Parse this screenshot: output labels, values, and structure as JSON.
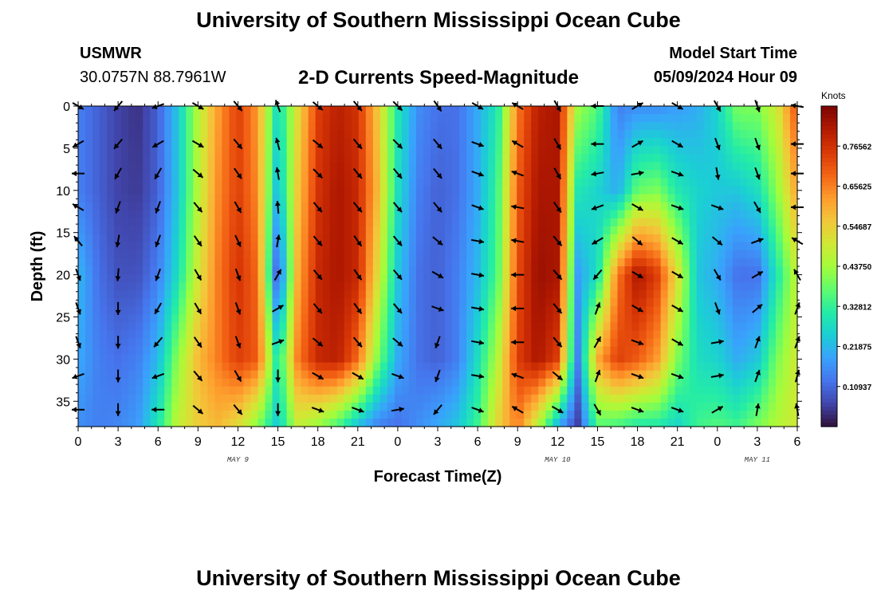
{
  "header": {
    "title": "University of Southern Mississippi Ocean Cube",
    "station": "USMWR",
    "coords": "30.0757N  88.7961W",
    "variable": "2-D Currents Speed-Magnitude",
    "model_start_label": "Model Start Time",
    "model_start_value": "05/09/2024 Hour 09"
  },
  "footer": {
    "title": "University of Southern Mississippi Ocean Cube"
  },
  "colors": {
    "arrow": "#000000",
    "axis": "#000000",
    "background": "#ffffff"
  },
  "chart_data": {
    "type": "heatmap",
    "title": "2-D Currents Speed-Magnitude",
    "xlabel": "Forecast Time(Z)",
    "ylabel": "Depth (ft)",
    "x_tick_labels": [
      "0",
      "3",
      "6",
      "9",
      "12",
      "15",
      "18",
      "21",
      "0",
      "3",
      "6",
      "9",
      "12",
      "15",
      "18",
      "21",
      "0",
      "3",
      "6"
    ],
    "x_range_hours": [
      0,
      54
    ],
    "y_ticks": [
      0,
      5,
      10,
      15,
      20,
      25,
      30,
      35
    ],
    "y_range_ft": [
      0,
      38
    ],
    "date_labels": [
      {
        "text": "MAY 9",
        "hour": 12
      },
      {
        "text": "MAY 10",
        "hour": 36
      },
      {
        "text": "MAY 11",
        "hour": 51
      }
    ],
    "colorbar": {
      "title": "Knots",
      "labels": [
        "0.76562",
        "0.65625",
        "0.54687",
        "0.43750",
        "0.32812",
        "0.21875",
        "0.10937"
      ],
      "range": [
        0,
        0.875
      ],
      "colormap": [
        "#30123b",
        "#4145ab",
        "#4675ed",
        "#39a2fc",
        "#1bcfd4",
        "#24eca6",
        "#61fc6c",
        "#a4fc3b",
        "#d1e834",
        "#f3c63a",
        "#fe9b2d",
        "#f36315",
        "#d93806",
        "#b11901",
        "#7a0403"
      ]
    },
    "speed_profiles": {
      "hours": [
        0,
        1.5,
        3,
        4.5,
        6,
        7.5,
        9,
        10.5,
        12,
        13.5,
        15,
        16.5,
        18,
        19.5,
        21,
        22.5,
        24,
        25.5,
        27,
        28.5,
        30,
        31.5,
        33,
        34.5,
        36,
        37.5,
        39,
        40.5,
        42,
        43.5,
        45,
        46.5,
        48,
        49.5,
        51,
        52.5,
        54
      ],
      "depths_ft": [
        0,
        10,
        20,
        30,
        38
      ],
      "values_knots": [
        [
          0.14,
          0.14,
          0.22,
          0.2,
          0.16
        ],
        [
          0.1,
          0.1,
          0.12,
          0.14,
          0.14
        ],
        [
          0.06,
          0.06,
          0.08,
          0.12,
          0.15
        ],
        [
          0.04,
          0.05,
          0.08,
          0.14,
          0.18
        ],
        [
          0.1,
          0.1,
          0.14,
          0.22,
          0.3
        ],
        [
          0.24,
          0.24,
          0.28,
          0.42,
          0.48
        ],
        [
          0.46,
          0.46,
          0.5,
          0.58,
          0.55
        ],
        [
          0.62,
          0.64,
          0.66,
          0.66,
          0.58
        ],
        [
          0.74,
          0.74,
          0.76,
          0.74,
          0.52
        ],
        [
          0.62,
          0.64,
          0.68,
          0.7,
          0.4
        ],
        [
          0.26,
          0.2,
          0.06,
          0.28,
          0.24
        ],
        [
          0.52,
          0.56,
          0.6,
          0.66,
          0.48
        ],
        [
          0.74,
          0.76,
          0.78,
          0.78,
          0.42
        ],
        [
          0.8,
          0.82,
          0.82,
          0.8,
          0.34
        ],
        [
          0.76,
          0.78,
          0.78,
          0.68,
          0.22
        ],
        [
          0.56,
          0.58,
          0.52,
          0.4,
          0.14
        ],
        [
          0.3,
          0.28,
          0.24,
          0.2,
          0.12
        ],
        [
          0.16,
          0.14,
          0.12,
          0.12,
          0.16
        ],
        [
          0.12,
          0.1,
          0.1,
          0.1,
          0.2
        ],
        [
          0.12,
          0.12,
          0.14,
          0.14,
          0.24
        ],
        [
          0.2,
          0.2,
          0.22,
          0.28,
          0.34
        ],
        [
          0.3,
          0.34,
          0.36,
          0.46,
          0.54
        ],
        [
          0.66,
          0.7,
          0.72,
          0.74,
          0.66
        ],
        [
          0.8,
          0.82,
          0.84,
          0.82,
          0.46
        ],
        [
          0.82,
          0.82,
          0.82,
          0.74,
          0.2
        ],
        [
          0.44,
          0.3,
          0.18,
          0.14,
          0.05
        ],
        [
          0.36,
          0.26,
          0.28,
          0.6,
          0.36
        ],
        [
          0.14,
          0.2,
          0.66,
          0.74,
          0.34
        ],
        [
          0.16,
          0.38,
          0.82,
          0.7,
          0.3
        ],
        [
          0.16,
          0.4,
          0.74,
          0.62,
          0.3
        ],
        [
          0.18,
          0.3,
          0.52,
          0.4,
          0.26
        ],
        [
          0.2,
          0.26,
          0.24,
          0.28,
          0.34
        ],
        [
          0.26,
          0.24,
          0.2,
          0.26,
          0.36
        ],
        [
          0.4,
          0.24,
          0.12,
          0.2,
          0.34
        ],
        [
          0.4,
          0.28,
          0.12,
          0.24,
          0.4
        ],
        [
          0.5,
          0.42,
          0.3,
          0.4,
          0.46
        ],
        [
          0.72,
          0.62,
          0.48,
          0.5,
          0.5
        ]
      ]
    },
    "vectors": {
      "hours": [
        0,
        3,
        6,
        9,
        12,
        15,
        18,
        21,
        24,
        27,
        30,
        33,
        36,
        39,
        42,
        45,
        48,
        51,
        54
      ],
      "depths_ft": [
        0,
        4.5,
        8,
        12,
        16,
        20,
        24,
        28,
        32,
        36
      ],
      "directions_deg": [
        [
          120,
          240,
          270,
          300,
          320,
          160,
          160,
          160,
          250,
          270
        ],
        [
          220,
          220,
          210,
          200,
          190,
          185,
          180,
          180,
          180,
          180
        ],
        [
          250,
          240,
          210,
          200,
          200,
          200,
          210,
          220,
          250,
          270
        ],
        [
          120,
          120,
          130,
          140,
          145,
          150,
          150,
          145,
          140,
          130
        ],
        [
          140,
          140,
          145,
          150,
          155,
          160,
          160,
          160,
          150,
          140
        ],
        [
          340,
          345,
          350,
          355,
          10,
          30,
          60,
          70,
          180,
          180
        ],
        [
          130,
          130,
          135,
          140,
          140,
          140,
          140,
          130,
          120,
          110
        ],
        [
          140,
          140,
          140,
          140,
          145,
          145,
          145,
          140,
          120,
          110
        ],
        [
          135,
          135,
          140,
          140,
          140,
          140,
          140,
          130,
          110,
          80
        ],
        [
          145,
          140,
          140,
          140,
          130,
          120,
          110,
          200,
          200,
          220
        ],
        [
          120,
          110,
          110,
          110,
          100,
          100,
          100,
          100,
          100,
          110
        ],
        [
          300,
          300,
          290,
          280,
          280,
          270,
          270,
          270,
          290,
          300
        ],
        [
          150,
          150,
          150,
          145,
          140,
          140,
          140,
          140,
          130,
          120
        ],
        [
          270,
          270,
          260,
          250,
          240,
          220,
          20,
          30,
          20,
          150
        ],
        [
          60,
          60,
          80,
          120,
          130,
          120,
          120,
          110,
          110,
          110
        ],
        [
          120,
          120,
          110,
          110,
          120,
          120,
          120,
          120,
          110,
          110
        ],
        [
          150,
          160,
          170,
          110,
          130,
          150,
          160,
          80,
          80,
          60
        ],
        [
          160,
          160,
          160,
          150,
          70,
          60,
          50,
          20,
          20,
          10
        ],
        [
          280,
          270,
          270,
          270,
          300,
          330,
          20,
          20,
          15,
          350
        ]
      ]
    }
  }
}
